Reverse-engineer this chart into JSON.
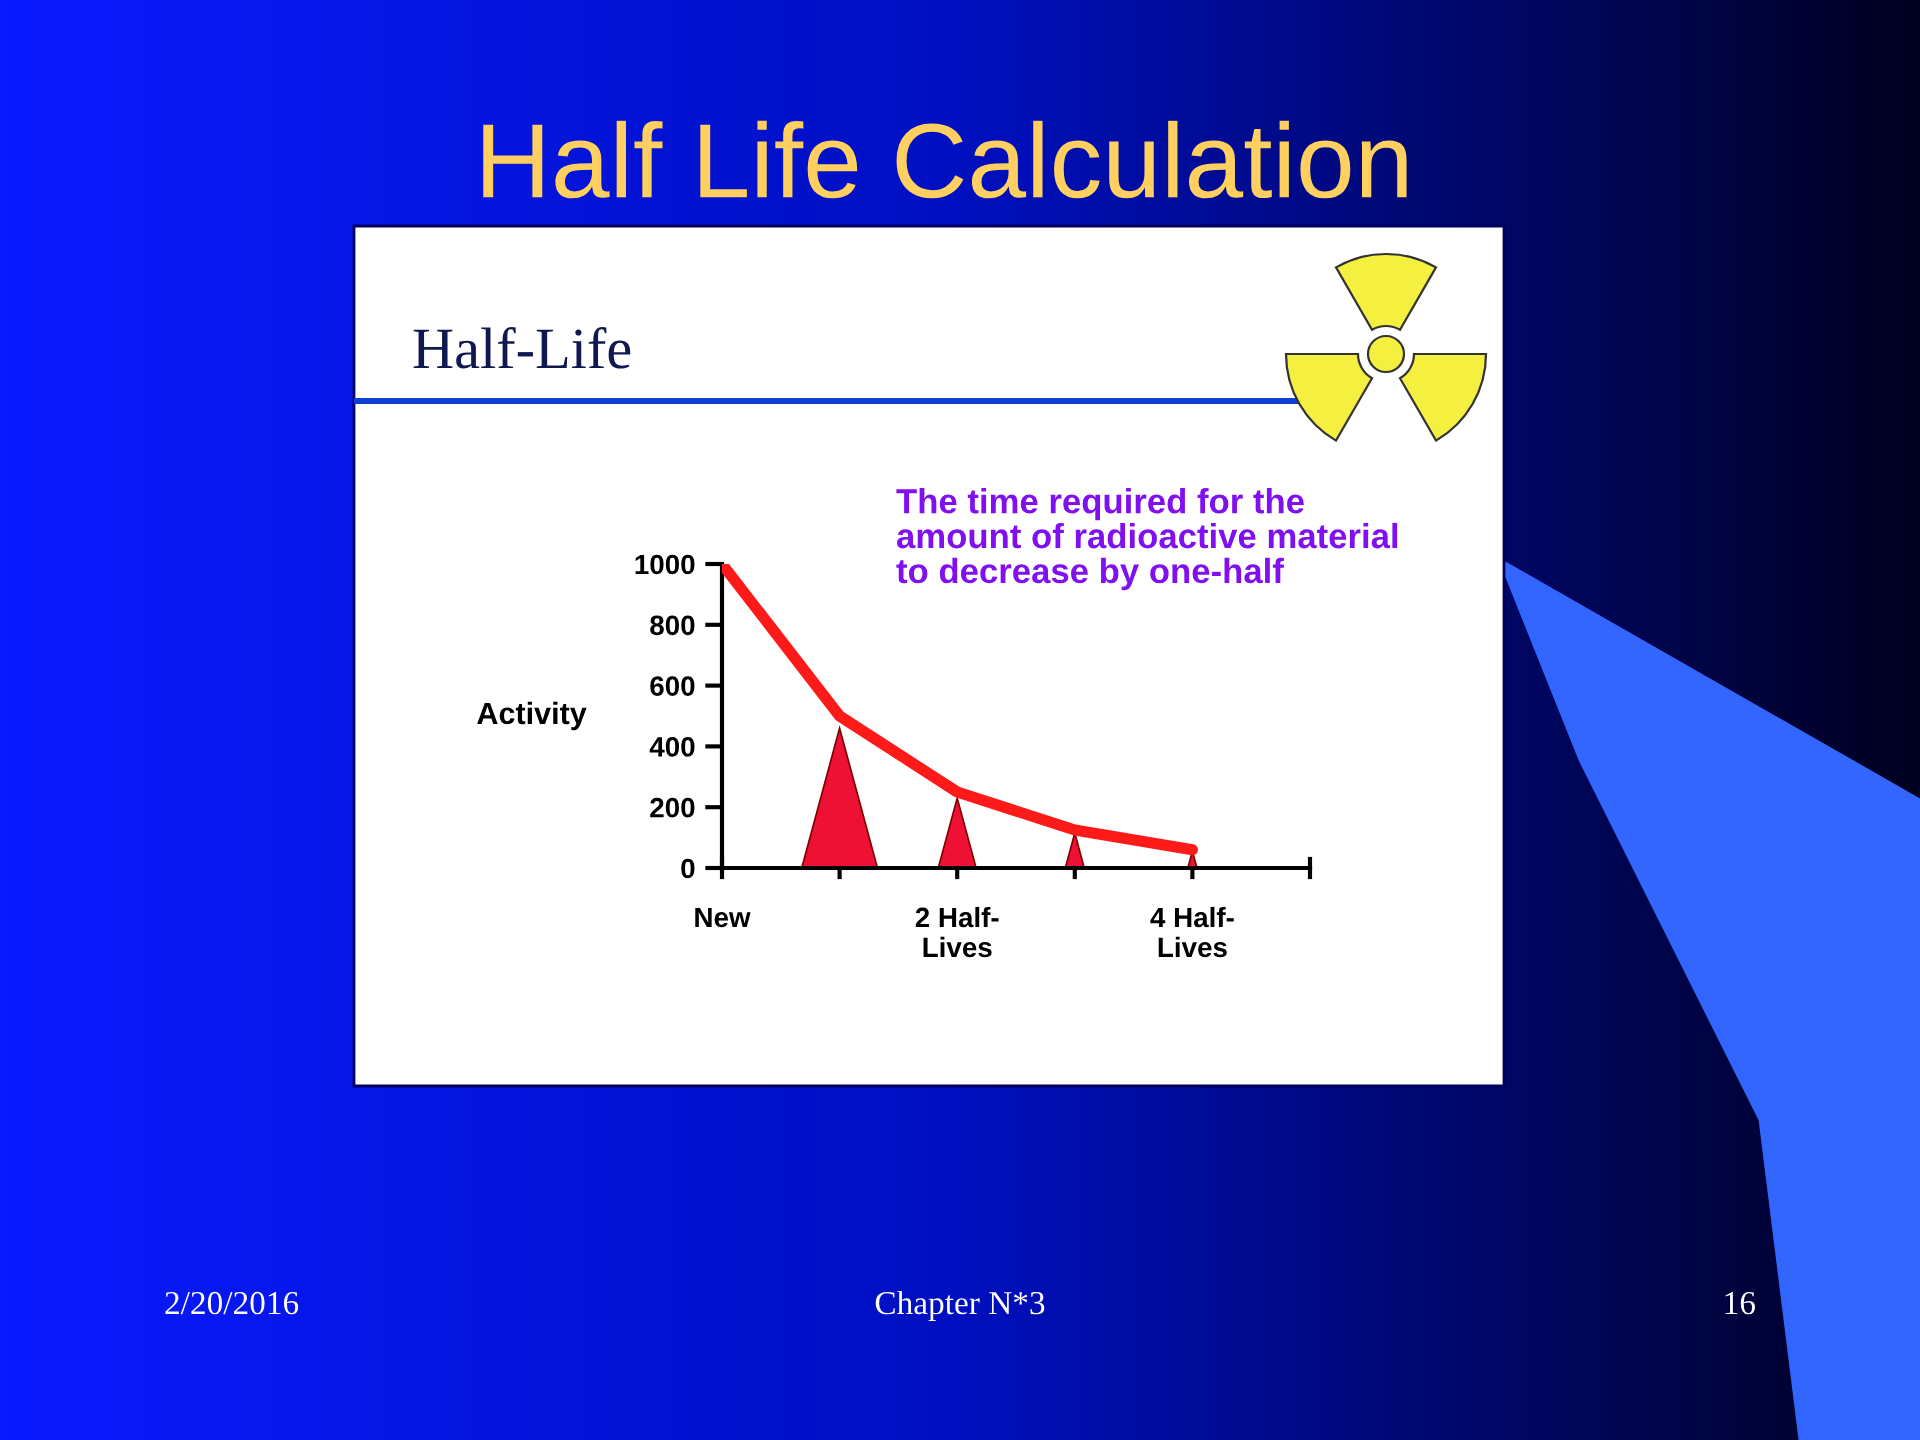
{
  "chart_data": {
    "type": "line",
    "title": "Half Life Calculation",
    "subtitle": "Half-Life",
    "ylabel": "Activity",
    "categories": [
      "New",
      null,
      "2 Half-\nLives",
      null,
      "4 Half-\nLives",
      null
    ],
    "series": [
      {
        "color": "#ff1a1a",
        "values": [
          1000,
          500,
          250,
          125,
          60,
          null
        ]
      }
    ],
    "ylim": [
      0,
      1000
    ],
    "yticks": [
      0,
      200,
      400,
      600,
      800,
      1000
    ],
    "grid": false,
    "legend": false,
    "marker": "none",
    "line_style": "solid",
    "annotations": [
      "The time required for the\namount of radioactive material\nto decrease by one-half",
      "2/20/2016",
      "Chapter N*3",
      "16"
    ]
  }
}
